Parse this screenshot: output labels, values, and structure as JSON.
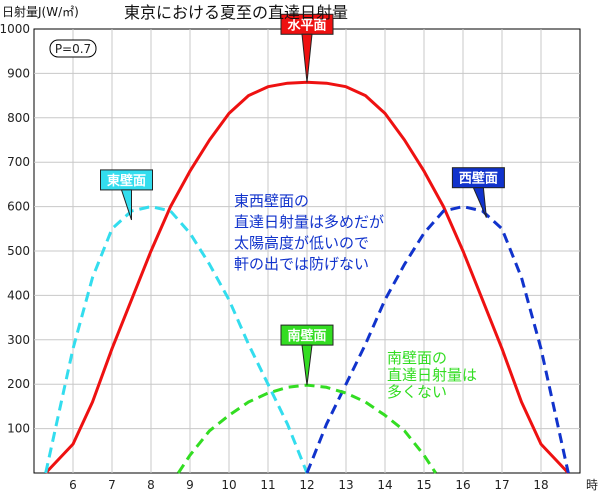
{
  "chart_data": {
    "type": "line",
    "title": "東京における夏至の直達日射量",
    "ylabel": "日射量J(W/㎡)",
    "xunit": "時",
    "param_label": "P=0.7",
    "xlim": [
      5,
      19
    ],
    "ylim": [
      0,
      1000
    ],
    "x_ticks": [
      6,
      7,
      8,
      9,
      10,
      11,
      12,
      13,
      14,
      15,
      16,
      17,
      18
    ],
    "y_ticks": [
      100,
      200,
      300,
      400,
      500,
      600,
      700,
      800,
      900,
      1000
    ],
    "grid": true,
    "series": [
      {
        "name": "水平面",
        "color": "#ee1111",
        "style": "solid",
        "x": [
          5.3,
          6,
          6.5,
          7,
          7.5,
          8,
          8.5,
          9,
          9.5,
          10,
          10.5,
          11,
          11.5,
          12,
          12.5,
          13,
          13.5,
          14,
          14.5,
          15,
          15.5,
          16,
          16.5,
          17,
          17.5,
          18,
          18.7
        ],
        "values": [
          0,
          65,
          160,
          280,
          390,
          500,
          600,
          680,
          750,
          810,
          850,
          870,
          878,
          880,
          878,
          870,
          850,
          810,
          750,
          680,
          600,
          500,
          390,
          280,
          160,
          65,
          0
        ]
      },
      {
        "name": "東壁面",
        "color": "#33ddee",
        "style": "dashed",
        "x": [
          5.3,
          6,
          6.5,
          7,
          7.5,
          8,
          8.5,
          9,
          9.5,
          10,
          10.5,
          11,
          11.5,
          12
        ],
        "values": [
          0,
          280,
          440,
          550,
          590,
          600,
          590,
          540,
          470,
          390,
          290,
          200,
          110,
          0
        ]
      },
      {
        "name": "西壁面",
        "color": "#1133cc",
        "style": "dashed",
        "x": [
          12,
          12.5,
          13,
          13.5,
          14,
          14.5,
          15,
          15.5,
          16,
          16.5,
          17,
          17.5,
          18,
          18.7
        ],
        "values": [
          0,
          110,
          200,
          290,
          390,
          470,
          540,
          590,
          600,
          590,
          550,
          440,
          280,
          0
        ]
      },
      {
        "name": "南壁面",
        "color": "#33dd22",
        "style": "dashed",
        "x": [
          8.7,
          9,
          9.5,
          10,
          10.5,
          11,
          11.5,
          12,
          12.5,
          13,
          13.5,
          14,
          14.5,
          15,
          15.3
        ],
        "values": [
          0,
          40,
          95,
          130,
          160,
          180,
          193,
          198,
          193,
          180,
          160,
          130,
          95,
          40,
          0
        ]
      }
    ],
    "callouts": [
      {
        "name": "水平面",
        "color": "#ee1111",
        "text_color": "#ffffff",
        "x": 12,
        "y": 880
      },
      {
        "name": "東壁面",
        "color": "#33ddee",
        "text_color": "#111111",
        "x": 7.5,
        "y": 570
      },
      {
        "name": "西壁面",
        "color": "#1133cc",
        "text_color": "#ffffff",
        "x": 16.6,
        "y": 575
      },
      {
        "name": "南壁面",
        "color": "#33dd22",
        "text_color": "#ffffff",
        "x": 12,
        "y": 198
      }
    ],
    "annotations": [
      {
        "color": "#1133cc",
        "lines": [
          "東西壁面の",
          "直達日射量は多めだが",
          "太陽高度が低いので",
          "軒の出では防げない"
        ]
      },
      {
        "color": "#33dd22",
        "lines": [
          "南壁面の",
          "直達日射量は",
          "多くない"
        ]
      }
    ]
  }
}
